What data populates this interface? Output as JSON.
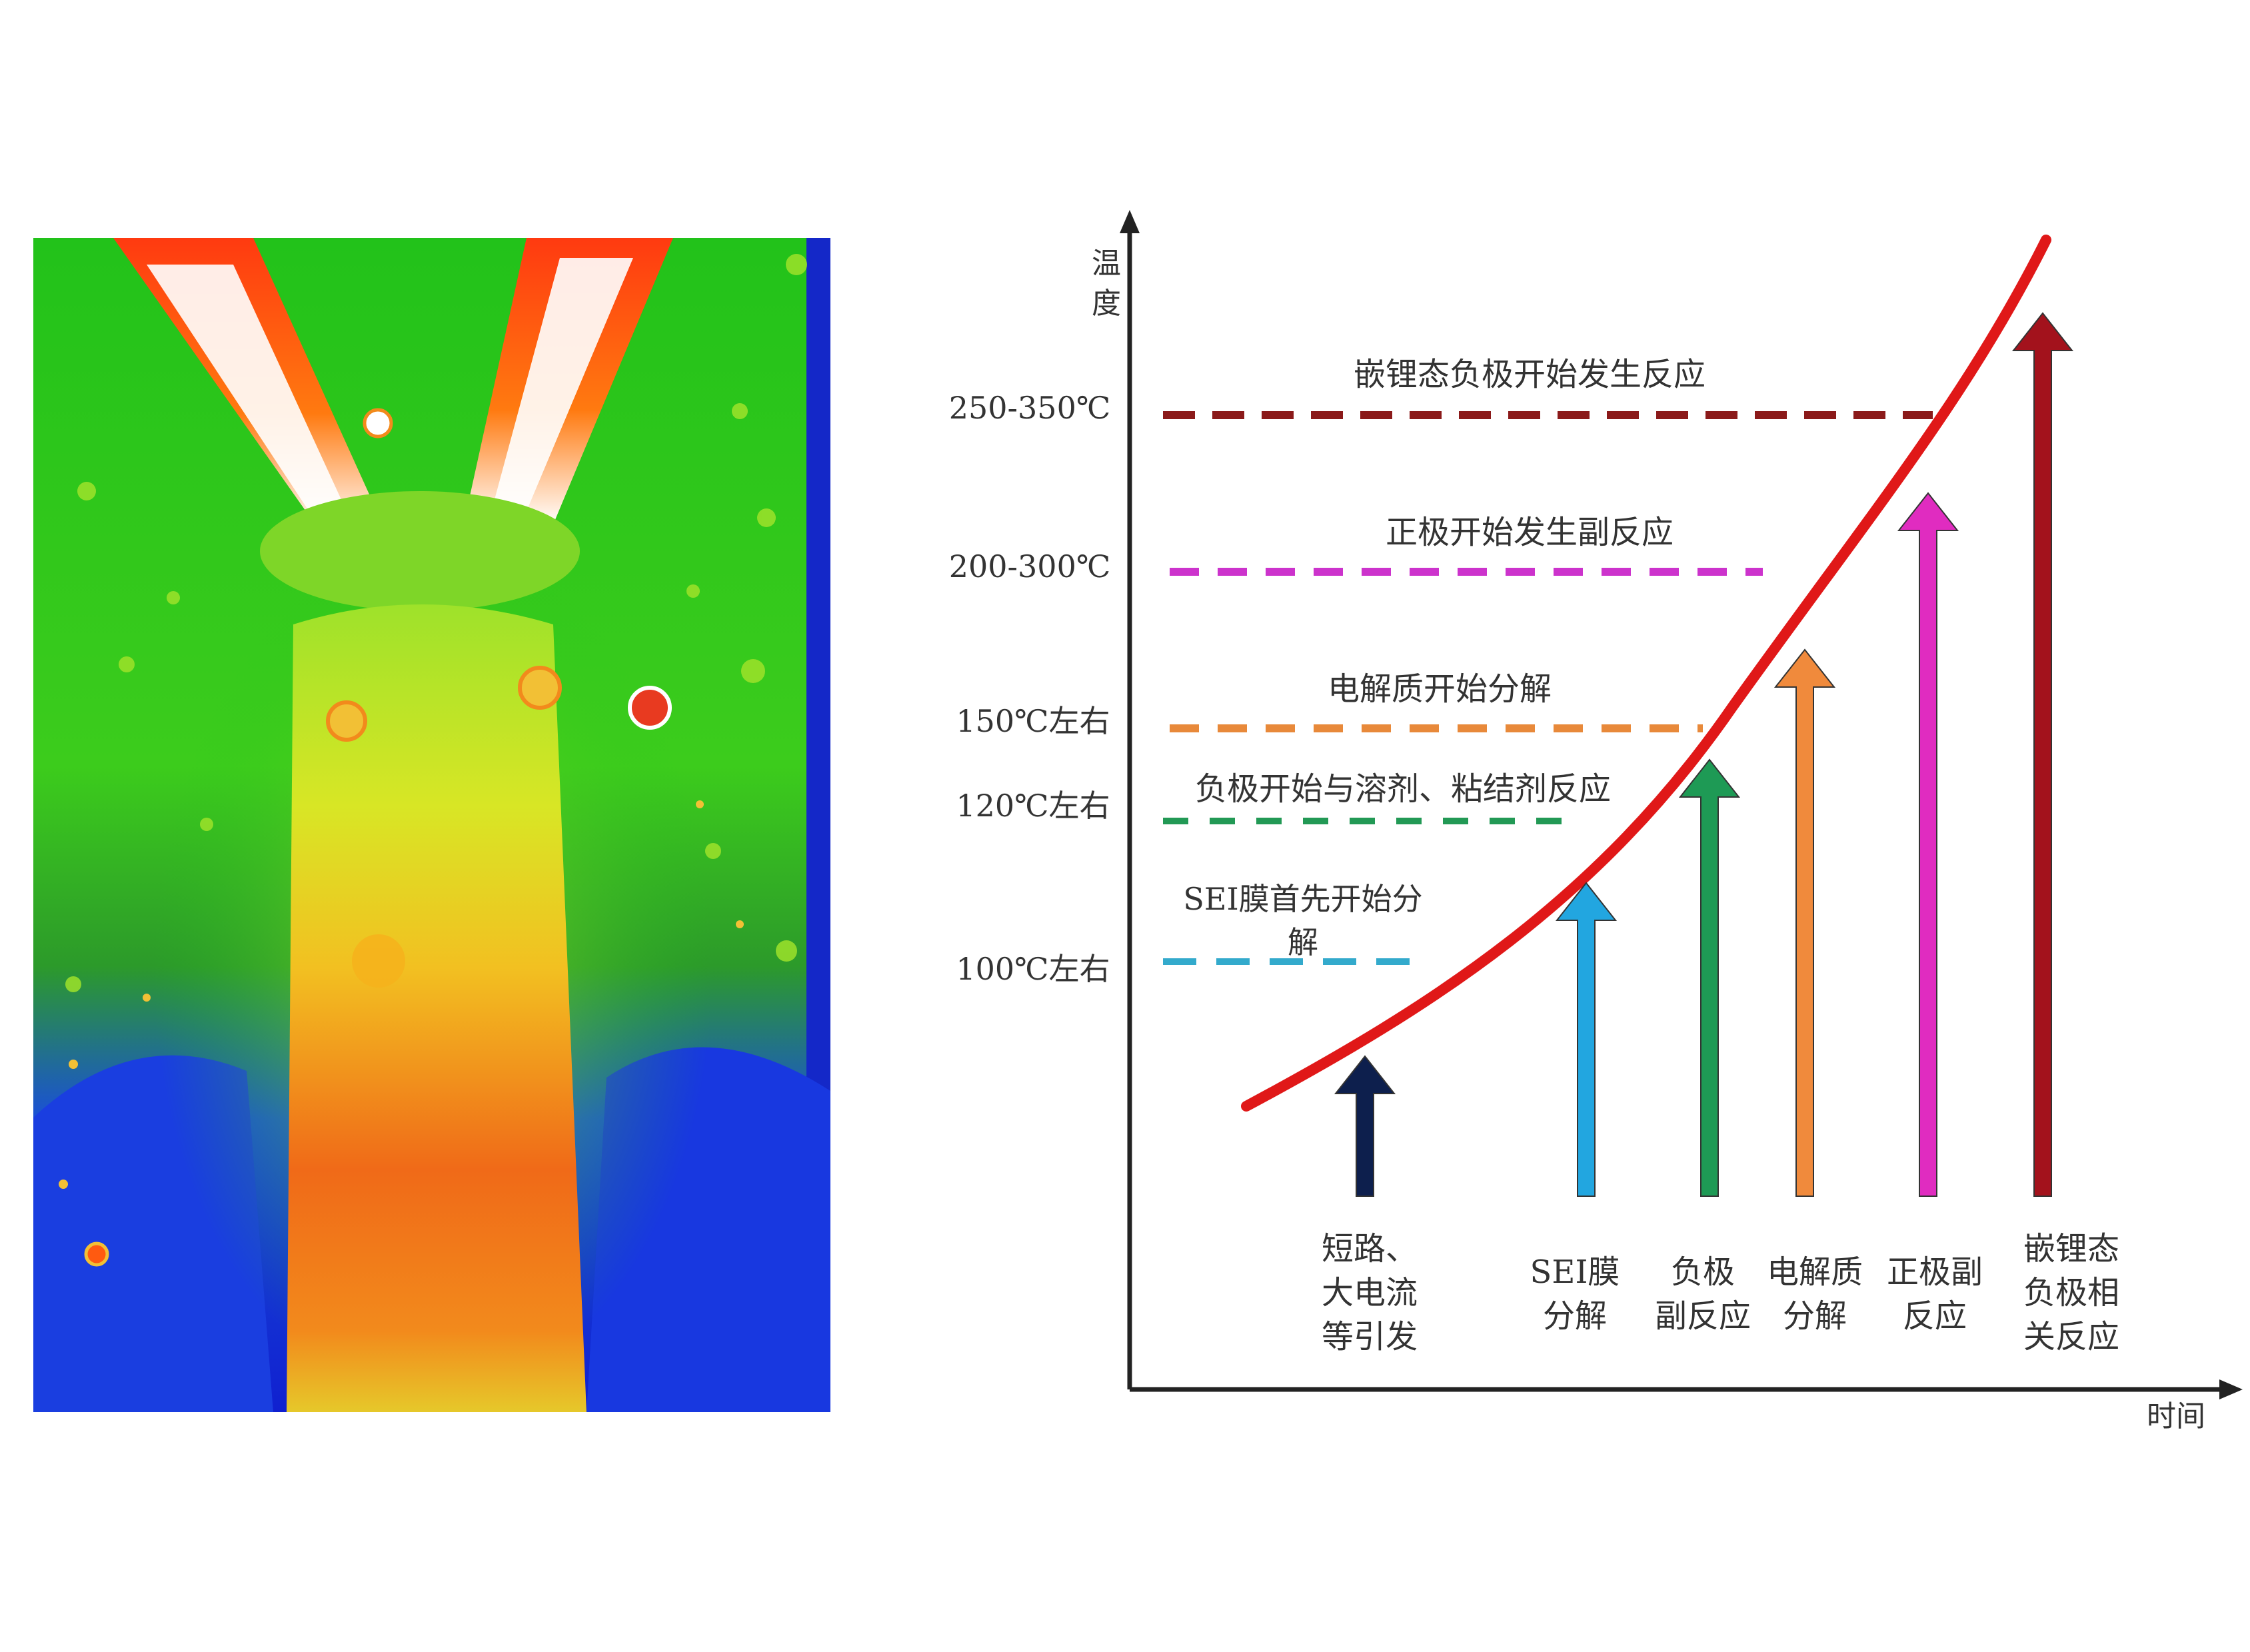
{
  "thermal_image": {
    "description_icon": "thermal-camera-image"
  },
  "axes": {
    "y_label": "温度",
    "x_label": "时间"
  },
  "temperature_levels": [
    {
      "temp": "250-350℃",
      "label": "嵌锂态负极开始发生反应",
      "color": "#8b1a1a"
    },
    {
      "temp": "200-300℃",
      "label": "正极开始发生副反应",
      "color": "#cc33cc"
    },
    {
      "temp": "150℃左右",
      "label": "电解质开始分解",
      "color": "#e8893a"
    },
    {
      "temp": "120℃左右",
      "label": "负极开始与溶剂、粘结剂反应",
      "color": "#229955"
    },
    {
      "temp": "100℃左右",
      "label_line1": "SEI膜首先开始分",
      "label_line2": "解",
      "color": "#33aacc"
    }
  ],
  "arrows": [
    {
      "lines": [
        "短路、",
        "大电流",
        "等引发"
      ],
      "color": "#0d1f4d"
    },
    {
      "lines": [
        "SEI膜",
        "分解"
      ],
      "color": "#22a6e0"
    },
    {
      "lines": [
        "负极",
        "副反应"
      ],
      "color": "#1e9a55"
    },
    {
      "lines": [
        "电解质",
        "分解"
      ],
      "color": "#f08a3c"
    },
    {
      "lines": [
        "正极副",
        "反应"
      ],
      "color": "#e02cc0"
    },
    {
      "lines": [
        "嵌锂态",
        "负极相",
        "关反应"
      ],
      "color": "#a3121c"
    }
  ],
  "curve_color": "#e01818"
}
